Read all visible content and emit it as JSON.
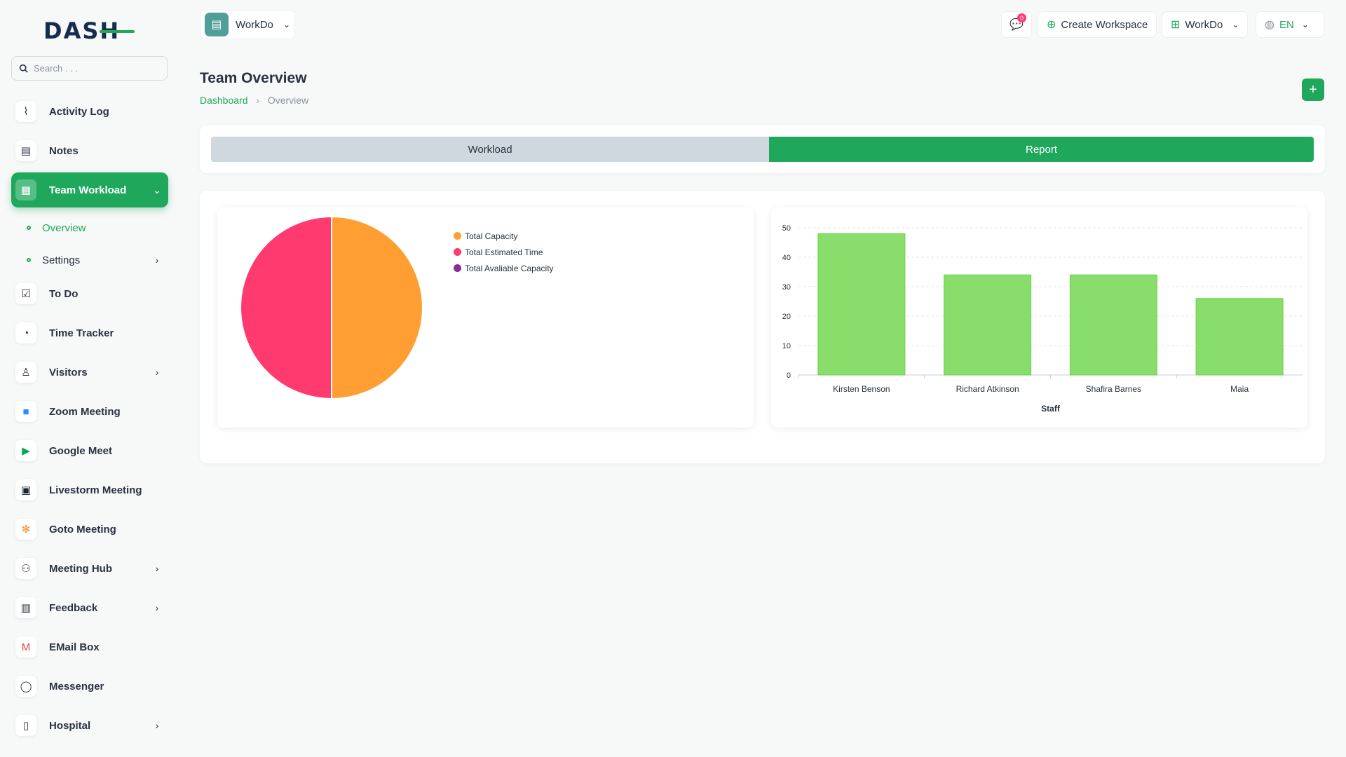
{
  "app": {
    "logo_text": "DASH"
  },
  "search": {
    "placeholder": "Search . . ."
  },
  "sidebar": {
    "items": [
      {
        "label": "Activity Log",
        "icon": "activity-icon",
        "glyph": "⌇",
        "chevron": false
      },
      {
        "label": "Notes",
        "icon": "notes-icon",
        "glyph": "▤",
        "chevron": false
      },
      {
        "label": "Team Workload",
        "icon": "calendar-icon",
        "glyph": "▦",
        "chevron": true,
        "active": true,
        "children": [
          {
            "label": "Overview",
            "current": true,
            "chevron": false
          },
          {
            "label": "Settings",
            "current": false,
            "chevron": true
          }
        ]
      },
      {
        "label": "To Do",
        "icon": "checklist-icon",
        "glyph": "☑",
        "chevron": false
      },
      {
        "label": "Time Tracker",
        "icon": "alarm-clock-icon",
        "glyph": "◔",
        "chevron": false
      },
      {
        "label": "Visitors",
        "icon": "person-icon",
        "glyph": "♙",
        "chevron": true
      },
      {
        "label": "Zoom Meeting",
        "icon": "zoom-icon",
        "glyph": "■",
        "chevron": false,
        "color": "#2d8cff"
      },
      {
        "label": "Google Meet",
        "icon": "google-meet-icon",
        "glyph": "▶",
        "chevron": false,
        "color": "#00a94f"
      },
      {
        "label": "Livestorm Meeting",
        "icon": "livestorm-icon",
        "glyph": "▣",
        "chevron": false,
        "color": "#1b2430"
      },
      {
        "label": "Goto Meeting",
        "icon": "goto-meeting-icon",
        "glyph": "✻",
        "chevron": false,
        "color": "#f68d2e"
      },
      {
        "label": "Meeting Hub",
        "icon": "users-icon",
        "glyph": "⚇",
        "chevron": true
      },
      {
        "label": "Feedback",
        "icon": "clipboard-icon",
        "glyph": "▥",
        "chevron": true
      },
      {
        "label": "EMail Box",
        "icon": "gmail-icon",
        "glyph": "M",
        "chevron": false,
        "color": "#ea4335"
      },
      {
        "label": "Messenger",
        "icon": "chat-bubble-icon",
        "glyph": "◯",
        "chevron": false
      },
      {
        "label": "Hospital",
        "icon": "hospital-icon",
        "glyph": "▯",
        "chevron": true
      }
    ]
  },
  "header": {
    "workspace_name": "WorkDo",
    "notification_count": "0",
    "create_workspace_label": "Create Workspace",
    "workspace_menu_label": "WorkDo",
    "language_label": "EN"
  },
  "page": {
    "title": "Team Overview",
    "breadcrumb": {
      "root": "Dashboard",
      "current": "Overview"
    }
  },
  "tabs": {
    "workload": "Workload",
    "report": "Report",
    "active": "report"
  },
  "colors": {
    "accent": "#1fa85c",
    "capacity": "#ff9f33",
    "estimated": "#ff3a6e",
    "available": "#8e2a9c",
    "bar": "#89dd6a"
  },
  "chart_data": [
    {
      "type": "pie",
      "legend": [
        "Total Capacity",
        "Total Estimated Time",
        "Total Avaliable Capacity"
      ],
      "values": [
        50,
        50,
        0
      ],
      "legend_position": "top-right"
    },
    {
      "type": "bar",
      "categories": [
        "Kirsten Benson",
        "Richard Atkinson",
        "Shafira Barnes",
        "Maia"
      ],
      "values": [
        48,
        34,
        34,
        26
      ],
      "xlabel": "Staff",
      "ylabel": "",
      "ylim": [
        0,
        50
      ],
      "yticks": [
        0,
        10,
        20,
        30,
        40,
        50
      ],
      "grid": true
    }
  ]
}
